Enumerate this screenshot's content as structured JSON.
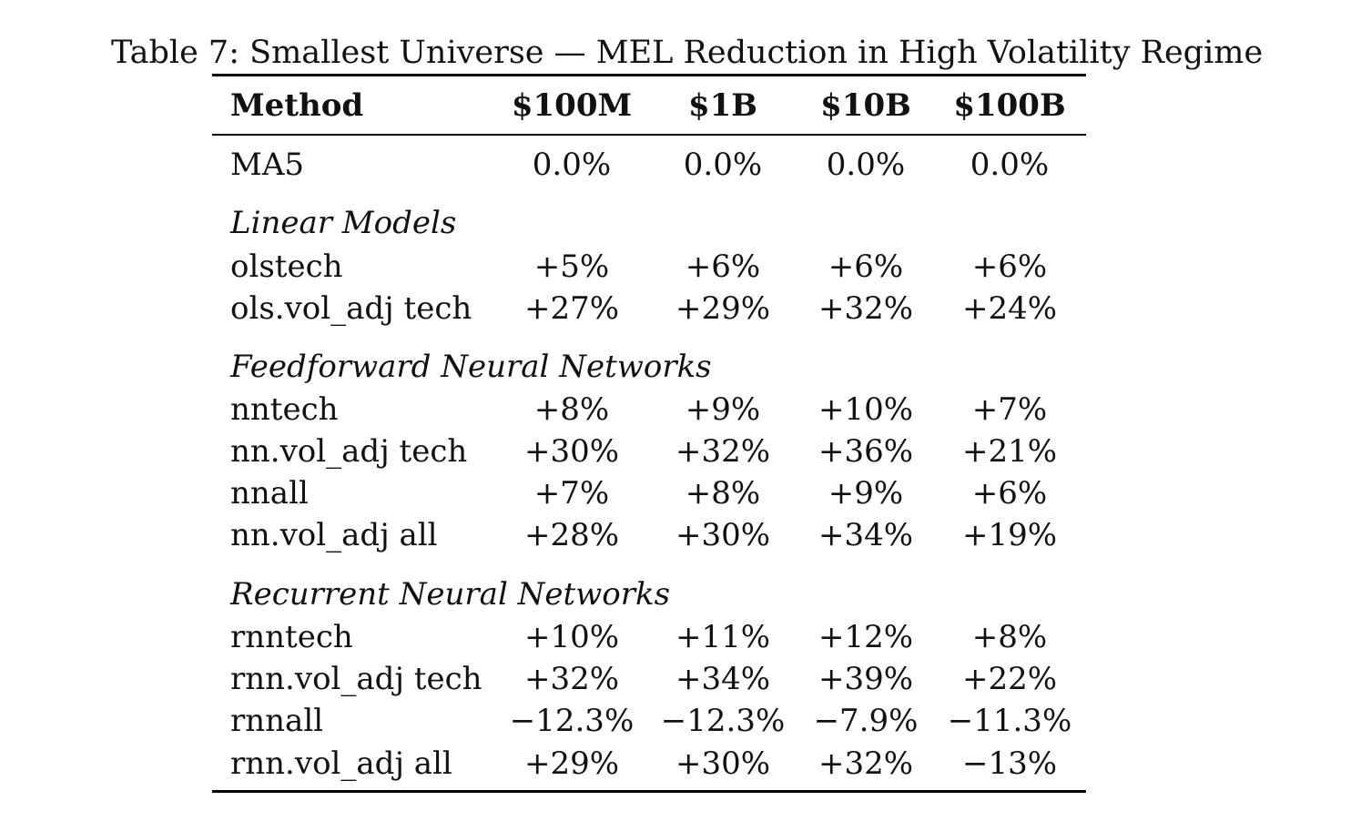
{
  "caption": "Table 7: Smallest Universe — MEL Reduction in High Volatility Regime",
  "header": {
    "method": "Method",
    "cols": [
      "$100M",
      "$1B",
      "$10B",
      "$100B"
    ]
  },
  "baseline": {
    "method": "MA5",
    "values": [
      "0.0%",
      "0.0%",
      "0.0%",
      "0.0%"
    ]
  },
  "sections": [
    {
      "title": "Linear Models",
      "rows": [
        {
          "method": "olstech",
          "values": [
            "+5%",
            "+6%",
            "+6%",
            "+6%"
          ]
        },
        {
          "method": "ols.vol_adj tech",
          "values": [
            "+27%",
            "+29%",
            "+32%",
            "+24%"
          ]
        }
      ]
    },
    {
      "title": "Feedforward Neural Networks",
      "rows": [
        {
          "method": "nntech",
          "values": [
            "+8%",
            "+9%",
            "+10%",
            "+7%"
          ]
        },
        {
          "method": "nn.vol_adj tech",
          "values": [
            "+30%",
            "+32%",
            "+36%",
            "+21%"
          ]
        },
        {
          "method": "nnall",
          "values": [
            "+7%",
            "+8%",
            "+9%",
            "+6%"
          ]
        },
        {
          "method": "nn.vol_adj all",
          "values": [
            "+28%",
            "+30%",
            "+34%",
            "+19%"
          ]
        }
      ]
    },
    {
      "title": "Recurrent Neural Networks",
      "rows": [
        {
          "method": "rnntech",
          "values": [
            "+10%",
            "+11%",
            "+12%",
            "+8%"
          ]
        },
        {
          "method": "rnn.vol_adj tech",
          "values": [
            "+32%",
            "+34%",
            "+39%",
            "+22%"
          ]
        },
        {
          "method": "rnnall",
          "values": [
            "−12.3%",
            "−12.3%",
            "−7.9%",
            "−11.3%"
          ]
        },
        {
          "method": "rnn.vol_adj all",
          "values": [
            "+29%",
            "+30%",
            "+32%",
            "−13%"
          ]
        }
      ]
    }
  ]
}
